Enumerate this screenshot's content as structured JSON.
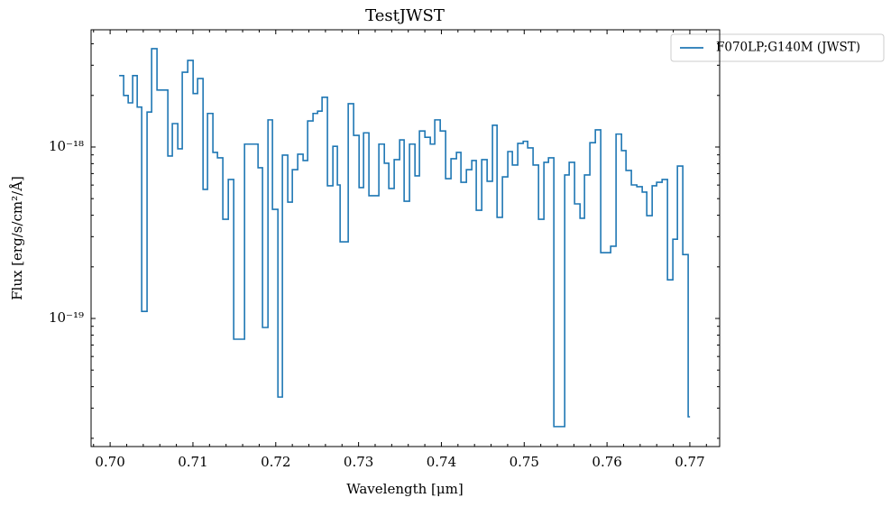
{
  "chart_data": {
    "type": "step",
    "title": "TestJWST",
    "xlabel": "Wavelength [μm]",
    "ylabel": "Flux [erg/s/cm²/Å]",
    "log_y": true,
    "legend": "upper right",
    "xlim": [
      0.6977,
      0.7736
    ],
    "ylim": [
      1.79e-20,
      4.83e-18
    ],
    "xticks": [
      {
        "value": 0.7,
        "label": "0.70"
      },
      0.71,
      0.72,
      0.73,
      0.74,
      0.75,
      0.76,
      0.77
    ],
    "xminor": [
      0.698,
      0.702,
      0.704,
      0.706,
      0.708,
      0.712,
      0.714,
      0.716,
      0.718,
      0.722,
      0.724,
      0.726,
      0.728,
      0.732,
      0.734,
      0.736,
      0.738,
      0.742,
      0.744,
      0.746,
      0.748,
      0.752,
      0.754,
      0.756,
      0.758,
      0.762,
      0.764,
      0.766,
      0.768,
      0.772
    ],
    "yticks": [
      {
        "value": 1e-19,
        "label": "10⁻¹⁹"
      },
      {
        "value": 1e-18,
        "label": "10⁻¹⁸"
      }
    ],
    "yminor": [
      2e-20,
      3e-20,
      4e-20,
      5e-20,
      6e-20,
      7e-20,
      8e-20,
      9e-20,
      2e-19,
      3e-19,
      4e-19,
      5e-19,
      6e-19,
      7e-19,
      8e-19,
      9e-19,
      2e-18,
      3e-18,
      4e-18
    ],
    "x": [
      0.70109,
      0.70163,
      0.70218,
      0.70272,
      0.70327,
      0.70381,
      0.70446,
      0.70501,
      0.70566,
      0.70632,
      0.70697,
      0.70751,
      0.70817,
      0.70871,
      0.70937,
      0.71002,
      0.71056,
      0.71122,
      0.71176,
      0.71241,
      0.71296,
      0.71361,
      0.71427,
      0.71492,
      0.71623,
      0.71786,
      0.7184,
      0.71906,
      0.7196,
      0.72026,
      0.7208,
      0.72145,
      0.722,
      0.72265,
      0.7233,
      0.72385,
      0.7245,
      0.72505,
      0.72559,
      0.72624,
      0.7269,
      0.72744,
      0.72777,
      0.72875,
      0.7294,
      0.73006,
      0.7306,
      0.73125,
      0.73245,
      0.73311,
      0.73365,
      0.7343,
      0.73496,
      0.7355,
      0.73615,
      0.73681,
      0.73735,
      0.73801,
      0.73866,
      0.7392,
      0.73986,
      0.74051,
      0.74116,
      0.74182,
      0.74236,
      0.74302,
      0.74367,
      0.74421,
      0.74487,
      0.74552,
      0.74617,
      0.74672,
      0.74737,
      0.74802,
      0.74857,
      0.74922,
      0.74988,
      0.75042,
      0.75107,
      0.75173,
      0.75238,
      0.75293,
      0.75358,
      0.75489,
      0.75543,
      0.75608,
      0.75674,
      0.75728,
      0.75793,
      0.75859,
      0.75924,
      0.76044,
      0.76109,
      0.76175,
      0.76229,
      0.76294,
      0.7636,
      0.76425,
      0.7648,
      0.76545,
      0.76599,
      0.76665,
      0.7673,
      0.76795,
      0.7685,
      0.76915,
      0.7698,
      0.77002
    ],
    "series": [
      {
        "name": "F070LP;G140M (JWST)",
        "color": "#1f77b4",
        "values": [
          2.61e-18,
          2.61e-18,
          2e-18,
          1.81e-18,
          2.61e-18,
          1.71e-18,
          1.1e-19,
          1.6e-18,
          3.75e-18,
          2.15e-18,
          2.15e-18,
          8.86e-19,
          1.37e-18,
          9.76e-19,
          2.73e-18,
          3.2e-18,
          2.05e-18,
          2.51e-18,
          5.66e-19,
          1.57e-18,
          9.3e-19,
          8.65e-19,
          3.79e-19,
          6.47e-19,
          7.57e-20,
          1.04e-18,
          7.57e-19,
          8.86e-20,
          1.44e-18,
          4.33e-19,
          3.48e-20,
          8.97e-19,
          4.77e-19,
          7.38e-19,
          9.08e-19,
          8.34e-19,
          1.42e-18,
          1.57e-18,
          1.62e-18,
          1.95e-18,
          5.94e-19,
          1.01e-18,
          6.01e-19,
          2.8e-19,
          1.79e-18,
          1.17e-18,
          5.8e-19,
          1.21e-18,
          5.2e-19,
          1.04e-18,
          8.04e-19,
          5.73e-19,
          8.44e-19,
          1.1e-18,
          4.83e-19,
          1.04e-18,
          6.79e-19,
          1.24e-18,
          1.14e-18,
          1.04e-18,
          1.44e-18,
          1.24e-18,
          6.54e-19,
          8.55e-19,
          9.3e-19,
          6.23e-19,
          7.38e-19,
          8.34e-19,
          4.28e-19,
          8.44e-19,
          6.31e-19,
          1.34e-18,
          3.89e-19,
          6.7e-19,
          9.41e-19,
          7.85e-19,
          1.05e-18,
          1.08e-18,
          9.88e-19,
          7.85e-19,
          3.79e-19,
          8.14e-19,
          8.65e-19,
          2.34e-20,
          6.87e-19,
          8.14e-19,
          4.66e-19,
          3.84e-19,
          6.87e-19,
          1.06e-18,
          1.26e-18,
          2.42e-19,
          2.64e-19,
          1.19e-18,
          9.53e-19,
          7.3e-19,
          6.01e-19,
          5.87e-19,
          5.46e-19,
          3.98e-19,
          5.94e-19,
          6.23e-19,
          6.47e-19,
          1.68e-19,
          2.9e-19,
          7.75e-19,
          2.36e-19,
          2.67e-20
        ]
      }
    ]
  }
}
